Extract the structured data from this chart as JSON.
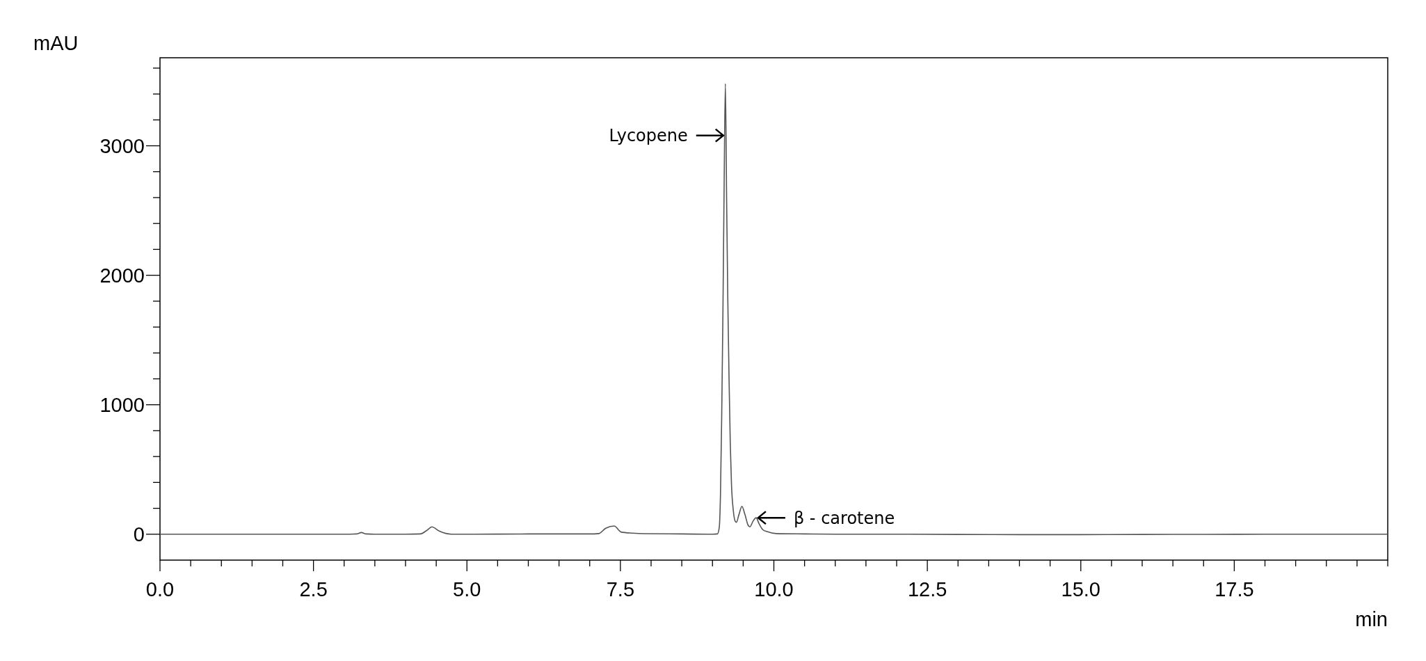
{
  "chart_data": {
    "type": "line",
    "xlabel": "min",
    "ylabel": "mAU",
    "xlim": [
      0,
      20
    ],
    "ylim": [
      -200,
      3680
    ],
    "xticks": [
      {
        "value": 0,
        "label": "0.0"
      },
      {
        "value": 0.5,
        "label": null
      },
      {
        "value": 1,
        "label": null
      },
      {
        "value": 1.5,
        "label": null
      },
      {
        "value": 2,
        "label": null
      },
      {
        "value": 2.5,
        "label": "2.5"
      },
      {
        "value": 3,
        "label": null
      },
      {
        "value": 3.5,
        "label": null
      },
      {
        "value": 4,
        "label": null
      },
      {
        "value": 4.5,
        "label": null
      },
      {
        "value": 5,
        "label": "5.0"
      },
      {
        "value": 5.5,
        "label": null
      },
      {
        "value": 6,
        "label": null
      },
      {
        "value": 6.5,
        "label": null
      },
      {
        "value": 7,
        "label": null
      },
      {
        "value": 7.5,
        "label": "7.5"
      },
      {
        "value": 8,
        "label": null
      },
      {
        "value": 8.5,
        "label": null
      },
      {
        "value": 9,
        "label": null
      },
      {
        "value": 9.5,
        "label": null
      },
      {
        "value": 10,
        "label": "10.0"
      },
      {
        "value": 10.5,
        "label": null
      },
      {
        "value": 11,
        "label": null
      },
      {
        "value": 11.5,
        "label": null
      },
      {
        "value": 12,
        "label": null
      },
      {
        "value": 12.5,
        "label": "12.5"
      },
      {
        "value": 13,
        "label": null
      },
      {
        "value": 13.5,
        "label": null
      },
      {
        "value": 14,
        "label": null
      },
      {
        "value": 14.5,
        "label": null
      },
      {
        "value": 15,
        "label": "15.0"
      },
      {
        "value": 15.5,
        "label": null
      },
      {
        "value": 16,
        "label": null
      },
      {
        "value": 16.5,
        "label": null
      },
      {
        "value": 17,
        "label": null
      },
      {
        "value": 17.5,
        "label": "17.5"
      },
      {
        "value": 18,
        "label": null
      },
      {
        "value": 18.5,
        "label": null
      },
      {
        "value": 19,
        "label": null
      },
      {
        "value": 19.5,
        "label": null
      },
      {
        "value": 20,
        "label": null
      }
    ],
    "yticks": [
      0,
      {
        "value": 200,
        "label": null
      },
      {
        "value": 400,
        "label": null
      },
      {
        "value": 600,
        "label": null
      },
      {
        "value": 800,
        "label": null
      },
      1000,
      {
        "value": 1200,
        "label": null
      },
      {
        "value": 1400,
        "label": null
      },
      {
        "value": 1600,
        "label": null
      },
      {
        "value": 1800,
        "label": null
      },
      2000,
      {
        "value": 2200,
        "label": null
      },
      {
        "value": 2400,
        "label": null
      },
      {
        "value": 2600,
        "label": null
      },
      {
        "value": 2800,
        "label": null
      },
      3000,
      {
        "value": 3200,
        "label": null
      },
      {
        "value": 3400,
        "label": null
      },
      {
        "value": 3600,
        "label": null
      }
    ],
    "grid": false,
    "marker": "none",
    "line_style": "solid",
    "series": [
      {
        "color": "#555555",
        "x": [
          0,
          1,
          2,
          3,
          3.2,
          3.28,
          3.36,
          3.5,
          4,
          4.24,
          4.34,
          4.43,
          4.55,
          4.75,
          5,
          6,
          7,
          7.15,
          7.26,
          7.4,
          7.51,
          7.7,
          7.9,
          8.5,
          9,
          9.08,
          9.11,
          9.13,
          9.15,
          9.17,
          9.19,
          9.21,
          9.23,
          9.25,
          9.27,
          9.29,
          9.31,
          9.34,
          9.37,
          9.39,
          9.43,
          9.48,
          9.53,
          9.58,
          9.61,
          9.66,
          9.71,
          9.76,
          9.82,
          9.89,
          10.04,
          10.5,
          11,
          12,
          13,
          14,
          15,
          16,
          17,
          18,
          19,
          20
        ],
        "values": [
          0,
          0,
          0,
          0,
          2,
          13,
          2,
          0,
          0,
          2,
          27,
          57,
          24,
          0,
          0,
          2,
          2,
          5,
          46,
          63,
          17,
          8,
          4,
          2,
          0,
          2,
          50,
          300,
          900,
          1700,
          2700,
          3480,
          2600,
          1800,
          1200,
          700,
          380,
          180,
          100,
          92,
          150,
          215,
          150,
          70,
          57,
          100,
          127,
          80,
          35,
          20,
          5,
          2,
          0,
          0,
          -2,
          -3,
          -3,
          -2,
          -1,
          0,
          0,
          0
        ]
      }
    ],
    "annotations": [
      {
        "text": "Lycopene",
        "x": 9.21,
        "y": 3080
      },
      {
        "text": "β - carotene",
        "x": 9.71,
        "y": 127
      }
    ]
  }
}
